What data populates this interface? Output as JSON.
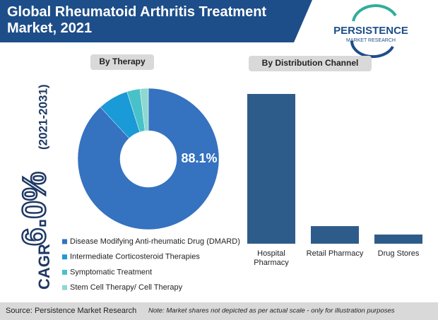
{
  "header": {
    "title": "Global Rheumatoid Arthritis Treatment Market, 2021"
  },
  "logo": {
    "name": "PERSISTENCE",
    "tagline": "MARKET RESEARCH"
  },
  "cagr": {
    "label": "CAGR",
    "value": "6.0%",
    "period": "(2021-2031)"
  },
  "chart_data": [
    {
      "type": "pie",
      "title": "By Therapy",
      "categories": [
        "Disease Modifying Anti-rheumatic Drug (DMARD)",
        "Intermediate Corticosteroid Therapies",
        "Symptomatic Treatment",
        "Stem Cell Therapy/ Cell Therapy"
      ],
      "values": [
        88.1,
        7,
        3,
        1.9
      ],
      "value_labels": [
        "88.1%",
        null,
        null,
        null
      ],
      "colors": [
        "#3572c0",
        "#1a9ad6",
        "#48c2c8",
        "#8fd8d2"
      ]
    },
    {
      "type": "bar",
      "title": "By Distribution Channel",
      "categories": [
        "Hospital Pharmacy",
        "Retail Pharmacy",
        "Drug Stores"
      ],
      "values": [
        80,
        9.4,
        4.9
      ],
      "color": "#2e5c8a"
    }
  ],
  "footer": {
    "source": "Source: Persistence Market Research",
    "note": "Note: Market shares not depicted as per actual scale - only for illustration purposes"
  }
}
